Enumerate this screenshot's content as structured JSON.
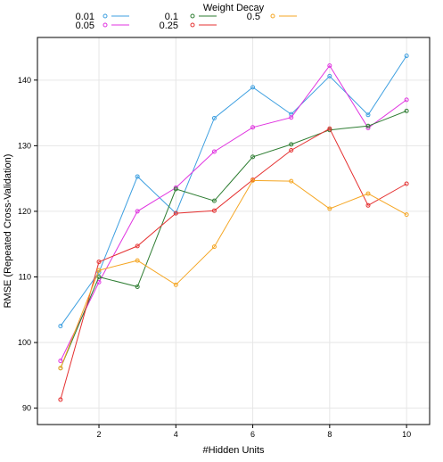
{
  "chart_data": {
    "type": "line",
    "title": "",
    "xlabel": "#Hidden Units",
    "ylabel": "RMSE (Repeated Cross-Validation)",
    "xlim": [
      0.4,
      10.6
    ],
    "ylim": [
      87.5,
      146.5
    ],
    "grid": true,
    "legend_position": "top",
    "legend_title": "Weight Decay",
    "x": [
      1,
      2,
      3,
      4,
      5,
      6,
      7,
      8,
      9,
      10
    ],
    "x_ticks": [
      2,
      4,
      6,
      8,
      10
    ],
    "x_tick_labels": [
      "2",
      "4",
      "6",
      "8",
      "10"
    ],
    "y_ticks": [
      90,
      100,
      110,
      120,
      130,
      140
    ],
    "y_tick_labels": [
      "90",
      "100",
      "110",
      "120",
      "130",
      "140"
    ],
    "series": [
      {
        "name": "0.01",
        "color": "#3d9fe0",
        "values": [
          102.5,
          110.7,
          125.3,
          119.7,
          134.2,
          138.9,
          134.8,
          140.6,
          134.7,
          143.7
        ]
      },
      {
        "name": "0.05",
        "color": "#e033e0",
        "values": [
          97.2,
          109.2,
          120.0,
          123.6,
          129.1,
          132.8,
          134.3,
          142.2,
          132.7,
          137.0
        ]
      },
      {
        "name": "0.1",
        "color": "#2e7d32",
        "values": [
          96.1,
          110.0,
          108.5,
          123.4,
          121.6,
          128.3,
          130.2,
          132.4,
          133.0,
          135.3
        ]
      },
      {
        "name": "0.25",
        "color": "#e53030",
        "values": [
          91.3,
          112.3,
          114.7,
          119.7,
          120.1,
          124.8,
          129.3,
          132.6,
          120.9,
          124.2
        ]
      },
      {
        "name": "0.5",
        "color": "#f5a623",
        "values": [
          96.1,
          111.0,
          112.5,
          108.8,
          114.6,
          124.7,
          124.6,
          120.4,
          122.7,
          119.5
        ]
      }
    ]
  }
}
